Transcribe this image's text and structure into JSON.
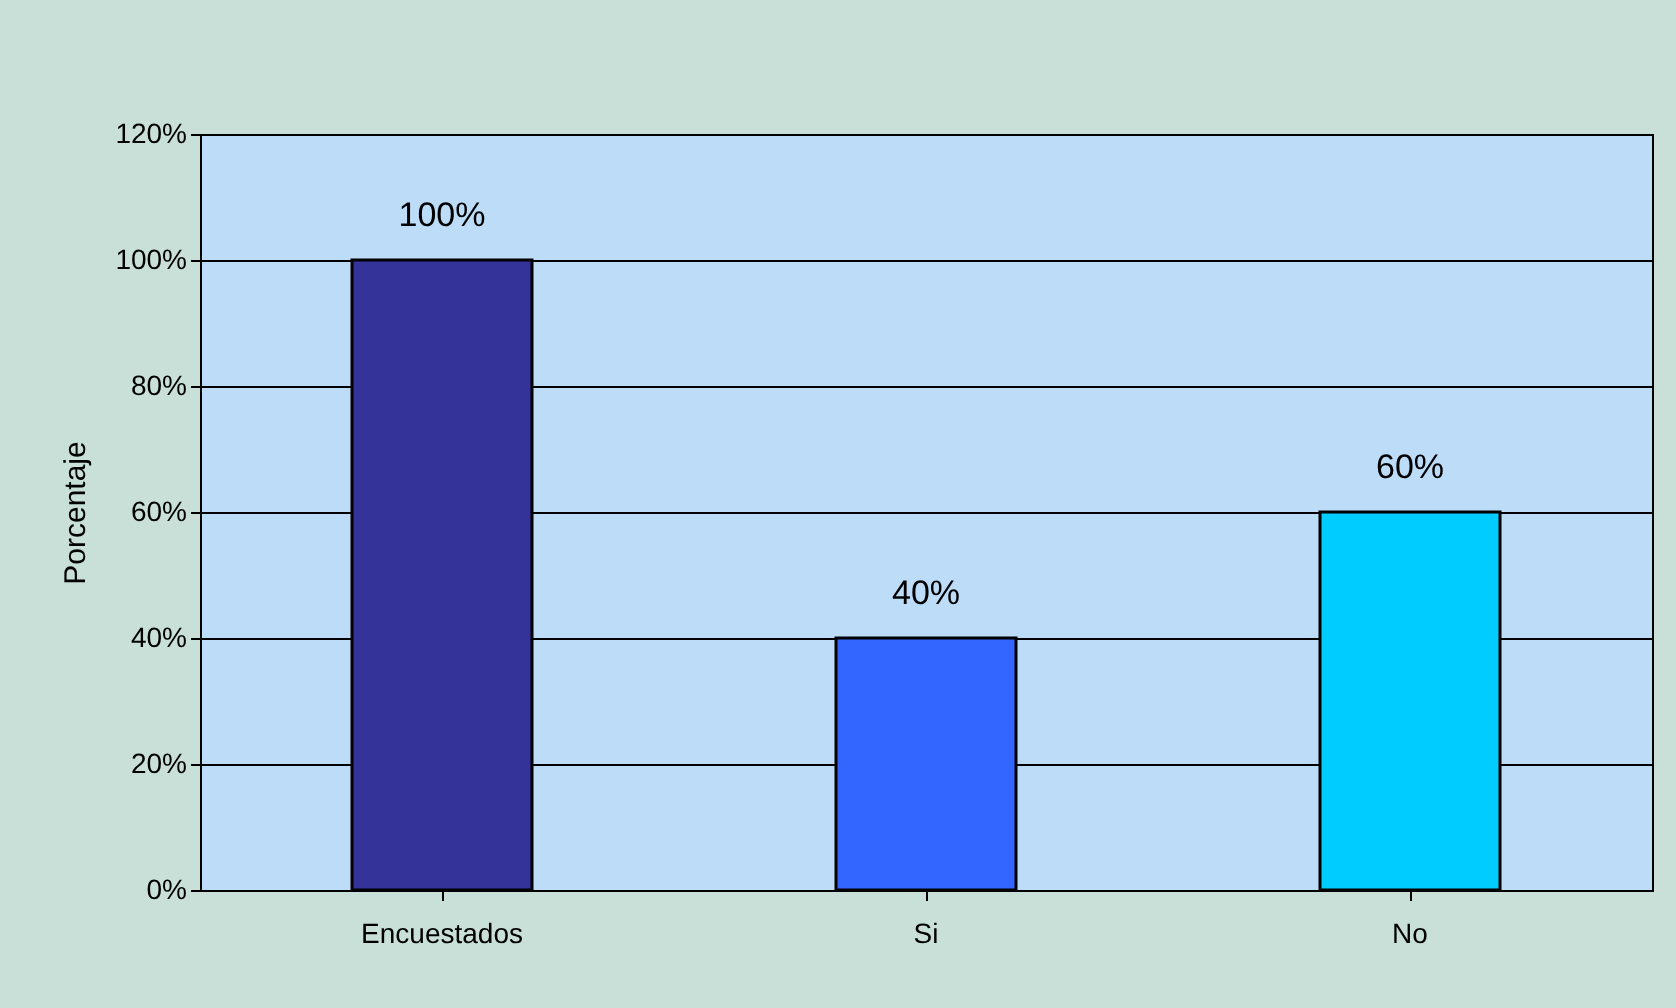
{
  "chart_data": {
    "type": "bar",
    "ylabel": "Porcentaje",
    "categories": [
      "Encuestados",
      "Si",
      "No"
    ],
    "values": [
      100,
      40,
      60
    ],
    "colors": [
      "#333399",
      "#3366ff",
      "#00ccff"
    ],
    "value_labels": [
      "100%",
      "40%",
      "60%"
    ],
    "ylim": [
      0,
      120
    ],
    "yticks": [
      {
        "value": 0,
        "label": "0%"
      },
      {
        "value": 20,
        "label": "20%"
      },
      {
        "value": 40,
        "label": "40%"
      },
      {
        "value": 60,
        "label": "60%"
      },
      {
        "value": 80,
        "label": "80%"
      },
      {
        "value": 100,
        "label": "100%"
      },
      {
        "value": 120,
        "label": "120%"
      }
    ],
    "grid": "y"
  }
}
